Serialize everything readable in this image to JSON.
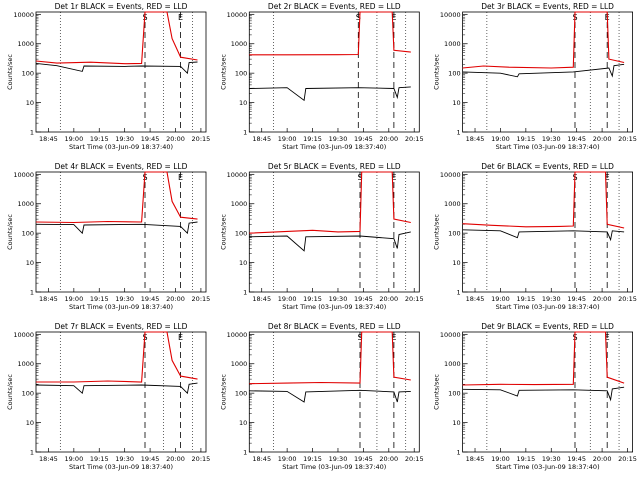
{
  "chart_data": [
    {
      "type": "line",
      "title": "Det 1r BLACK = Events, RED = LLD",
      "xlabel": "Start Time (03-Jun-09 18:37:40)",
      "ylabel": "Counts/sec",
      "x_ticks": [
        "18:45",
        "19:00",
        "19:15",
        "19:30",
        "19:45",
        "20:00",
        "20:15"
      ],
      "y_ticks": [
        "1",
        "10",
        "100",
        "1000",
        "10000"
      ],
      "yscale": "log",
      "ylim": [
        1,
        12000
      ],
      "markers": {
        "start": "S",
        "end": "E"
      },
      "series": [
        {
          "color": "#e00000",
          "values": [
            {
              "t": "18:37",
              "v": 260
            },
            {
              "t": "18:50",
              "v": 220
            },
            {
              "t": "19:10",
              "v": 235
            },
            {
              "t": "19:30",
              "v": 210
            },
            {
              "t": "19:40",
              "v": 215
            },
            {
              "t": "19:42",
              "v": 12000
            },
            {
              "t": "19:55",
              "v": 12000
            },
            {
              "t": "19:58",
              "v": 1500
            },
            {
              "t": "20:03",
              "v": 350
            },
            {
              "t": "20:13",
              "v": 280
            }
          ]
        },
        {
          "color": "#000000",
          "values": [
            {
              "t": "18:37",
              "v": 215
            },
            {
              "t": "18:50",
              "v": 180
            },
            {
              "t": "19:05",
              "v": 115
            },
            {
              "t": "19:06",
              "v": 175
            },
            {
              "t": "19:30",
              "v": 170
            },
            {
              "t": "19:40",
              "v": 175
            },
            {
              "t": "20:03",
              "v": 170
            },
            {
              "t": "20:07",
              "v": 100
            },
            {
              "t": "20:08",
              "v": 230
            },
            {
              "t": "20:13",
              "v": 240
            }
          ]
        }
      ]
    },
    {
      "type": "line",
      "title": "Det 2r BLACK = Events, RED = LLD",
      "xlabel": "Start Time (03-Jun-09 18:37:40)",
      "ylabel": "Counts/sec",
      "x_ticks": [
        "18:45",
        "19:00",
        "19:15",
        "19:30",
        "19:45",
        "20:00",
        "20:15"
      ],
      "y_ticks": [
        "1",
        "10",
        "100",
        "1000",
        "10000"
      ],
      "yscale": "log",
      "ylim": [
        1,
        12000
      ],
      "markers": {
        "start": "S",
        "end": "E"
      },
      "series": [
        {
          "color": "#e00000",
          "values": [
            {
              "t": "18:37",
              "v": 420
            },
            {
              "t": "19:00",
              "v": 420
            },
            {
              "t": "19:30",
              "v": 425
            },
            {
              "t": "19:42",
              "v": 430
            },
            {
              "t": "19:43",
              "v": 12000
            },
            {
              "t": "20:02",
              "v": 12000
            },
            {
              "t": "20:03",
              "v": 600
            },
            {
              "t": "20:13",
              "v": 520
            }
          ]
        },
        {
          "color": "#000000",
          "values": [
            {
              "t": "18:37",
              "v": 30
            },
            {
              "t": "19:00",
              "v": 32
            },
            {
              "t": "19:10",
              "v": 12
            },
            {
              "t": "19:11",
              "v": 30
            },
            {
              "t": "19:42",
              "v": 32
            },
            {
              "t": "20:03",
              "v": 30
            },
            {
              "t": "20:05",
              "v": 15
            },
            {
              "t": "20:06",
              "v": 32
            },
            {
              "t": "20:13",
              "v": 34
            }
          ]
        }
      ]
    },
    {
      "type": "line",
      "title": "Det 3r BLACK = Events, RED = LLD",
      "xlabel": "Start Time (03-Jun-09 18:37:40)",
      "ylabel": "Counts/sec",
      "x_ticks": [
        "18:45",
        "19:00",
        "19:15",
        "19:30",
        "19:45",
        "20:00",
        "20:15"
      ],
      "y_ticks": [
        "1",
        "10",
        "100",
        "1000",
        "10000"
      ],
      "yscale": "log",
      "ylim": [
        1,
        12000
      ],
      "markers": {
        "start": "S",
        "end": "E"
      },
      "series": [
        {
          "color": "#e00000",
          "values": [
            {
              "t": "18:37",
              "v": 150
            },
            {
              "t": "18:50",
              "v": 175
            },
            {
              "t": "19:05",
              "v": 160
            },
            {
              "t": "19:30",
              "v": 150
            },
            {
              "t": "19:43",
              "v": 160
            },
            {
              "t": "19:44",
              "v": 12000
            },
            {
              "t": "20:03",
              "v": 12000
            },
            {
              "t": "20:04",
              "v": 300
            },
            {
              "t": "20:13",
              "v": 230
            }
          ]
        },
        {
          "color": "#000000",
          "values": [
            {
              "t": "18:37",
              "v": 110
            },
            {
              "t": "19:00",
              "v": 100
            },
            {
              "t": "19:10",
              "v": 75
            },
            {
              "t": "19:11",
              "v": 95
            },
            {
              "t": "19:43",
              "v": 110
            },
            {
              "t": "20:04",
              "v": 150
            },
            {
              "t": "20:06",
              "v": 80
            },
            {
              "t": "20:07",
              "v": 180
            },
            {
              "t": "20:13",
              "v": 200
            }
          ]
        }
      ]
    },
    {
      "type": "line",
      "title": "Det 4r BLACK = Events, RED = LLD",
      "xlabel": "Start Time (03-Jun-09 18:37:40)",
      "ylabel": "Counts/sec",
      "x_ticks": [
        "18:45",
        "19:00",
        "19:15",
        "19:30",
        "19:45",
        "20:00",
        "20:15"
      ],
      "y_ticks": [
        "1",
        "10",
        "100",
        "1000",
        "10000"
      ],
      "yscale": "log",
      "ylim": [
        1,
        12000
      ],
      "markers": {
        "start": "S",
        "end": "E"
      },
      "series": [
        {
          "color": "#e00000",
          "values": [
            {
              "t": "18:37",
              "v": 240
            },
            {
              "t": "19:00",
              "v": 230
            },
            {
              "t": "19:20",
              "v": 250
            },
            {
              "t": "19:40",
              "v": 240
            },
            {
              "t": "19:42",
              "v": 12000
            },
            {
              "t": "19:55",
              "v": 12000
            },
            {
              "t": "19:58",
              "v": 1200
            },
            {
              "t": "20:03",
              "v": 350
            },
            {
              "t": "20:13",
              "v": 300
            }
          ]
        },
        {
          "color": "#000000",
          "values": [
            {
              "t": "18:37",
              "v": 200
            },
            {
              "t": "19:00",
              "v": 195
            },
            {
              "t": "19:05",
              "v": 100
            },
            {
              "t": "19:06",
              "v": 190
            },
            {
              "t": "19:40",
              "v": 200
            },
            {
              "t": "20:03",
              "v": 170
            },
            {
              "t": "20:07",
              "v": 100
            },
            {
              "t": "20:08",
              "v": 220
            },
            {
              "t": "20:13",
              "v": 240
            }
          ]
        }
      ]
    },
    {
      "type": "line",
      "title": "Det 5r BLACK = Events, RED = LLD",
      "xlabel": "Start Time (03-Jun-09 18:37:40)",
      "ylabel": "Counts/sec",
      "x_ticks": [
        "18:45",
        "19:00",
        "19:15",
        "19:30",
        "19:45",
        "20:00",
        "20:15"
      ],
      "y_ticks": [
        "1",
        "10",
        "100",
        "1000",
        "10000"
      ],
      "yscale": "log",
      "ylim": [
        1,
        12000
      ],
      "markers": {
        "start": "S",
        "end": "E"
      },
      "series": [
        {
          "color": "#e00000",
          "values": [
            {
              "t": "18:37",
              "v": 100
            },
            {
              "t": "19:00",
              "v": 115
            },
            {
              "t": "19:15",
              "v": 125
            },
            {
              "t": "19:30",
              "v": 110
            },
            {
              "t": "19:43",
              "v": 115
            },
            {
              "t": "19:44",
              "v": 12000
            },
            {
              "t": "20:02",
              "v": 12000
            },
            {
              "t": "20:03",
              "v": 300
            },
            {
              "t": "20:13",
              "v": 230
            }
          ]
        },
        {
          "color": "#000000",
          "values": [
            {
              "t": "18:37",
              "v": 75
            },
            {
              "t": "19:00",
              "v": 80
            },
            {
              "t": "19:10",
              "v": 25
            },
            {
              "t": "19:11",
              "v": 75
            },
            {
              "t": "19:43",
              "v": 80
            },
            {
              "t": "20:03",
              "v": 65
            },
            {
              "t": "20:05",
              "v": 30
            },
            {
              "t": "20:06",
              "v": 90
            },
            {
              "t": "20:13",
              "v": 110
            }
          ]
        }
      ]
    },
    {
      "type": "line",
      "title": "Det 6r BLACK = Events, RED = LLD",
      "xlabel": "Start Time (03-Jun-09 18:37:40)",
      "ylabel": "Counts/sec",
      "x_ticks": [
        "18:45",
        "19:00",
        "19:15",
        "19:30",
        "19:45",
        "20:00",
        "20:15"
      ],
      "y_ticks": [
        "1",
        "10",
        "100",
        "1000",
        "10000"
      ],
      "yscale": "log",
      "ylim": [
        1,
        12000
      ],
      "markers": {
        "start": "S",
        "end": "E"
      },
      "series": [
        {
          "color": "#e00000",
          "values": [
            {
              "t": "18:37",
              "v": 210
            },
            {
              "t": "18:55",
              "v": 185
            },
            {
              "t": "19:15",
              "v": 165
            },
            {
              "t": "19:35",
              "v": 170
            },
            {
              "t": "19:43",
              "v": 175
            },
            {
              "t": "19:44",
              "v": 12000
            },
            {
              "t": "20:02",
              "v": 12000
            },
            {
              "t": "20:03",
              "v": 200
            },
            {
              "t": "20:13",
              "v": 150
            }
          ]
        },
        {
          "color": "#000000",
          "values": [
            {
              "t": "18:37",
              "v": 130
            },
            {
              "t": "19:00",
              "v": 120
            },
            {
              "t": "19:10",
              "v": 70
            },
            {
              "t": "19:11",
              "v": 110
            },
            {
              "t": "19:43",
              "v": 120
            },
            {
              "t": "20:03",
              "v": 110
            },
            {
              "t": "20:05",
              "v": 60
            },
            {
              "t": "20:06",
              "v": 120
            },
            {
              "t": "20:13",
              "v": 110
            }
          ]
        }
      ]
    },
    {
      "type": "line",
      "title": "Det 7r BLACK = Events, RED = LLD",
      "xlabel": "Start Time (03-Jun-09 18:37:40)",
      "ylabel": "Counts/sec",
      "x_ticks": [
        "18:45",
        "19:00",
        "19:15",
        "19:30",
        "19:45",
        "20:00",
        "20:15"
      ],
      "y_ticks": [
        "1",
        "10",
        "100",
        "1000",
        "10000"
      ],
      "yscale": "log",
      "ylim": [
        1,
        12000
      ],
      "markers": {
        "start": "S",
        "end": "E"
      },
      "series": [
        {
          "color": "#e00000",
          "values": [
            {
              "t": "18:37",
              "v": 240
            },
            {
              "t": "19:00",
              "v": 240
            },
            {
              "t": "19:20",
              "v": 260
            },
            {
              "t": "19:40",
              "v": 240
            },
            {
              "t": "19:42",
              "v": 12000
            },
            {
              "t": "19:55",
              "v": 12000
            },
            {
              "t": "19:58",
              "v": 1300
            },
            {
              "t": "20:03",
              "v": 380
            },
            {
              "t": "20:13",
              "v": 300
            }
          ]
        },
        {
          "color": "#000000",
          "values": [
            {
              "t": "18:37",
              "v": 190
            },
            {
              "t": "19:00",
              "v": 180
            },
            {
              "t": "19:05",
              "v": 100
            },
            {
              "t": "19:06",
              "v": 180
            },
            {
              "t": "19:40",
              "v": 190
            },
            {
              "t": "20:03",
              "v": 170
            },
            {
              "t": "20:07",
              "v": 100
            },
            {
              "t": "20:08",
              "v": 200
            },
            {
              "t": "20:13",
              "v": 220
            }
          ]
        }
      ]
    },
    {
      "type": "line",
      "title": "Det 8r BLACK = Events, RED = LLD",
      "xlabel": "Start Time (03-Jun-09 18:37:40)",
      "ylabel": "Counts/sec",
      "x_ticks": [
        "18:45",
        "19:00",
        "19:15",
        "19:30",
        "19:45",
        "20:00",
        "20:15"
      ],
      "y_ticks": [
        "1",
        "10",
        "100",
        "1000",
        "10000"
      ],
      "yscale": "log",
      "ylim": [
        1,
        12000
      ],
      "markers": {
        "start": "S",
        "end": "E"
      },
      "series": [
        {
          "color": "#e00000",
          "values": [
            {
              "t": "18:37",
              "v": 210
            },
            {
              "t": "19:00",
              "v": 220
            },
            {
              "t": "19:20",
              "v": 230
            },
            {
              "t": "19:43",
              "v": 220
            },
            {
              "t": "19:44",
              "v": 12000
            },
            {
              "t": "20:02",
              "v": 12000
            },
            {
              "t": "20:03",
              "v": 350
            },
            {
              "t": "20:13",
              "v": 280
            }
          ]
        },
        {
          "color": "#000000",
          "values": [
            {
              "t": "18:37",
              "v": 120
            },
            {
              "t": "19:00",
              "v": 115
            },
            {
              "t": "19:10",
              "v": 50
            },
            {
              "t": "19:11",
              "v": 110
            },
            {
              "t": "19:43",
              "v": 125
            },
            {
              "t": "20:03",
              "v": 110
            },
            {
              "t": "20:05",
              "v": 50
            },
            {
              "t": "20:06",
              "v": 110
            },
            {
              "t": "20:13",
              "v": 115
            }
          ]
        }
      ]
    },
    {
      "type": "line",
      "title": "Det 9r BLACK = Events, RED = LLD",
      "xlabel": "Start Time (03-Jun-09 18:37:40)",
      "ylabel": "Counts/sec",
      "x_ticks": [
        "18:45",
        "19:00",
        "19:15",
        "19:30",
        "19:45",
        "20:00",
        "20:15"
      ],
      "y_ticks": [
        "1",
        "10",
        "100",
        "1000",
        "10000"
      ],
      "yscale": "log",
      "ylim": [
        1,
        12000
      ],
      "markers": {
        "start": "S",
        "end": "E"
      },
      "series": [
        {
          "color": "#e00000",
          "values": [
            {
              "t": "18:37",
              "v": 190
            },
            {
              "t": "19:00",
              "v": 200
            },
            {
              "t": "19:20",
              "v": 195
            },
            {
              "t": "19:43",
              "v": 200
            },
            {
              "t": "19:44",
              "v": 12000
            },
            {
              "t": "20:02",
              "v": 12000
            },
            {
              "t": "20:03",
              "v": 350
            },
            {
              "t": "20:13",
              "v": 220
            }
          ]
        },
        {
          "color": "#000000",
          "values": [
            {
              "t": "18:37",
              "v": 135
            },
            {
              "t": "19:00",
              "v": 130
            },
            {
              "t": "19:10",
              "v": 80
            },
            {
              "t": "19:11",
              "v": 125
            },
            {
              "t": "19:43",
              "v": 130
            },
            {
              "t": "20:03",
              "v": 120
            },
            {
              "t": "20:05",
              "v": 60
            },
            {
              "t": "20:06",
              "v": 140
            },
            {
              "t": "20:13",
              "v": 160
            }
          ]
        }
      ]
    }
  ]
}
